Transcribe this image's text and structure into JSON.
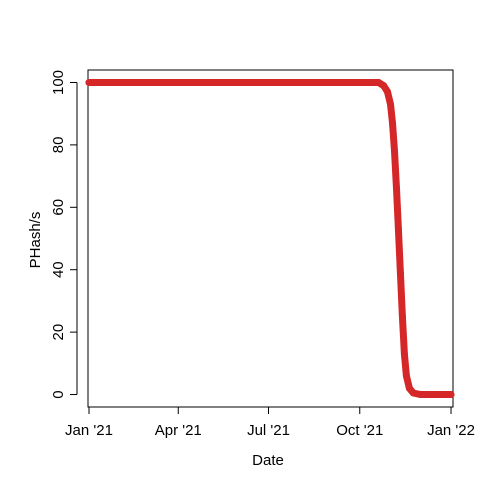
{
  "chart_data": {
    "type": "line",
    "title": "",
    "xlabel": "Date",
    "ylabel": "PHash/s",
    "x_axis_type": "date",
    "xlim": [
      "2020-12-31",
      "2022-01-03"
    ],
    "ylim": [
      -4,
      104
    ],
    "y_ticks": [
      0,
      20,
      40,
      60,
      80,
      100
    ],
    "x_ticks": [
      {
        "date": "2021-01-01",
        "label": "Jan '21"
      },
      {
        "date": "2021-04-01",
        "label": "Apr '21"
      },
      {
        "date": "2021-07-01",
        "label": "Jul '21"
      },
      {
        "date": "2021-10-01",
        "label": "Oct '21"
      },
      {
        "date": "2022-01-01",
        "label": "Jan '22"
      }
    ],
    "grid": false,
    "legend": "none",
    "series": [
      {
        "color": "#d62728",
        "points": [
          {
            "x": "2021-01-01",
            "y": 100
          },
          {
            "x": "2021-04-01",
            "y": 100
          },
          {
            "x": "2021-07-01",
            "y": 100
          },
          {
            "x": "2021-10-01",
            "y": 100
          },
          {
            "x": "2021-10-20",
            "y": 100
          },
          {
            "x": "2021-10-25",
            "y": 99
          },
          {
            "x": "2021-10-29",
            "y": 97
          },
          {
            "x": "2021-11-01",
            "y": 93
          },
          {
            "x": "2021-11-03",
            "y": 87
          },
          {
            "x": "2021-11-05",
            "y": 78
          },
          {
            "x": "2021-11-07",
            "y": 66
          },
          {
            "x": "2021-11-09",
            "y": 53
          },
          {
            "x": "2021-11-11",
            "y": 39
          },
          {
            "x": "2021-11-13",
            "y": 25
          },
          {
            "x": "2021-11-15",
            "y": 13
          },
          {
            "x": "2021-11-17",
            "y": 6
          },
          {
            "x": "2021-11-20",
            "y": 2
          },
          {
            "x": "2021-11-24",
            "y": 0.5
          },
          {
            "x": "2021-12-01",
            "y": 0
          },
          {
            "x": "2022-01-01",
            "y": 0
          }
        ]
      }
    ]
  }
}
